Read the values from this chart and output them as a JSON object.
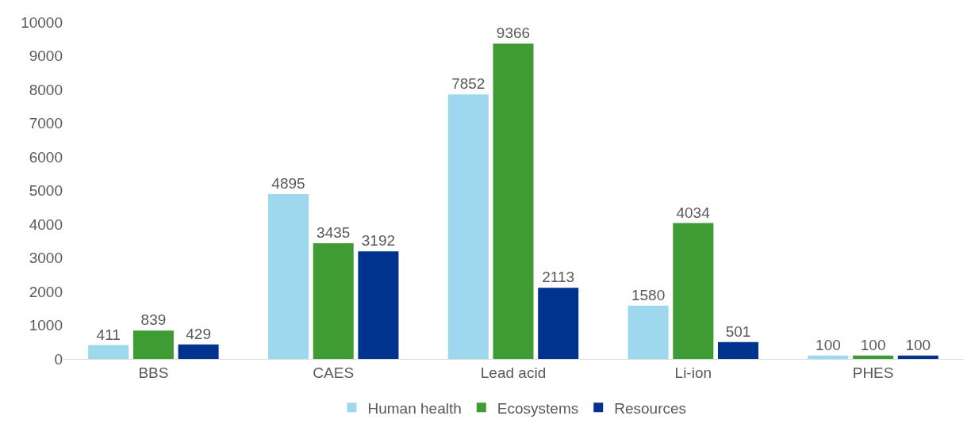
{
  "chart_data": {
    "type": "bar",
    "categories": [
      "BBS",
      "CAES",
      "Lead acid",
      "Li-ion",
      "PHES"
    ],
    "series": [
      {
        "name": "Human health",
        "color": "#9dd8ee",
        "values": [
          411,
          4895,
          7852,
          1580,
          100
        ]
      },
      {
        "name": "Ecosystems",
        "color": "#3f9c35",
        "values": [
          839,
          3435,
          9366,
          4034,
          100
        ]
      },
      {
        "name": "Resources",
        "color": "#00338d",
        "values": [
          429,
          3192,
          2113,
          501,
          100
        ]
      }
    ],
    "ylim": [
      0,
      10000
    ],
    "yticks": [
      0,
      1000,
      2000,
      3000,
      4000,
      5000,
      6000,
      7000,
      8000,
      9000,
      10000
    ],
    "grid": false,
    "legend": "bottom",
    "data_labels": true
  }
}
